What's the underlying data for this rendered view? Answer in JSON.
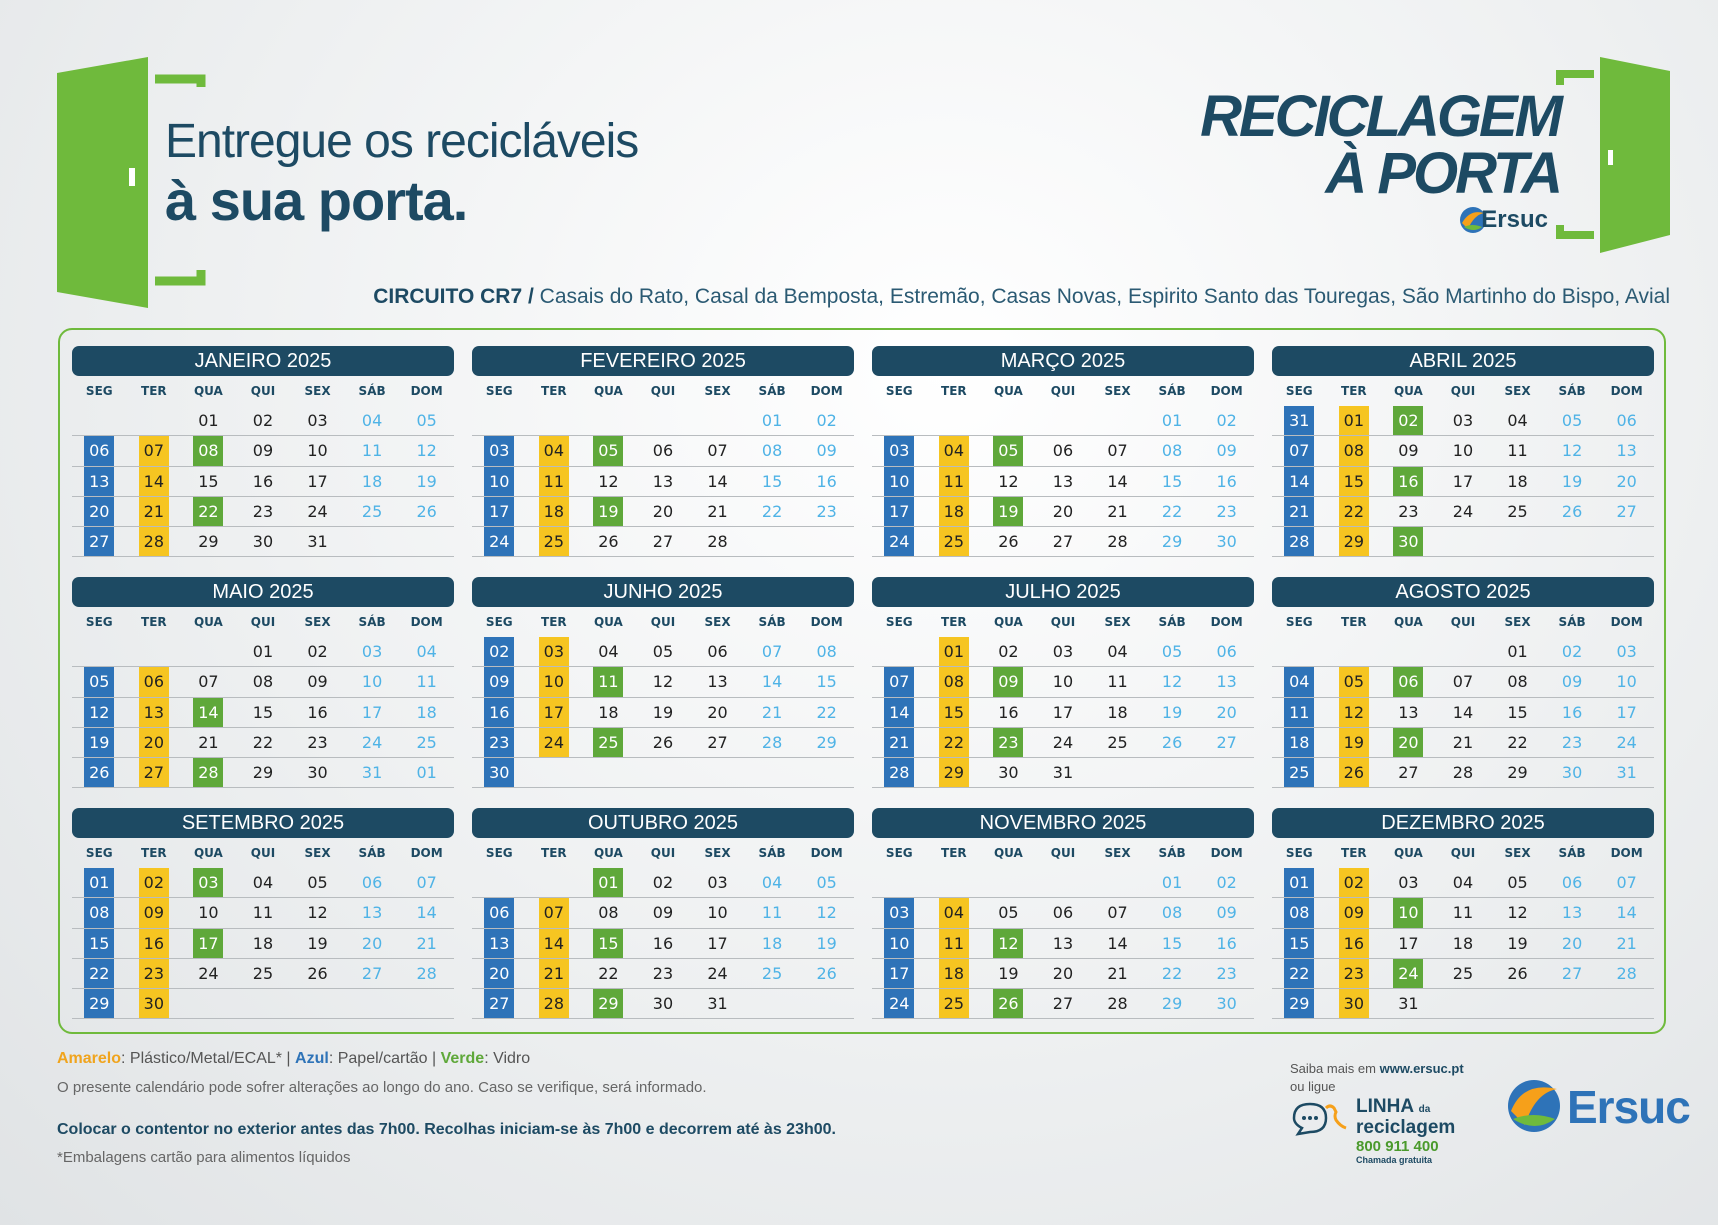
{
  "header": {
    "tagline_line1": "Entregue os recicláveis",
    "tagline_line2": "à sua porta.",
    "brand_line1": "RECICLAGEM",
    "brand_line2": "À PORTA",
    "brand_company": "Ersuc",
    "circuit_label": "CIRCUITO CR7 /",
    "circuit_places": "Casais do Rato, Casal da Bemposta, Estremão, Casas Novas, Espirito Santo das Touregas, São Martinho do Bispo, Avial"
  },
  "colors": {
    "amarelo": "#f6c521",
    "azul": "#2e73b8",
    "verde": "#5fa83a",
    "brand": "#1d4a63",
    "weekend": "#4fb3e6"
  },
  "weekdays": [
    "SEG",
    "TER",
    "QUA",
    "QUI",
    "SEX",
    "SÁB",
    "DOM"
  ],
  "months": [
    {
      "title": "JANEIRO 2025",
      "rows": [
        [
          "",
          "",
          "01",
          "02",
          "03",
          "04",
          "05"
        ],
        [
          "06",
          "07",
          "08",
          "09",
          "10",
          "11",
          "12"
        ],
        [
          "13",
          "14",
          "15",
          "16",
          "17",
          "18",
          "19"
        ],
        [
          "20",
          "21",
          "22",
          "23",
          "24",
          "25",
          "26"
        ],
        [
          "27",
          "28",
          "29",
          "30",
          "31",
          "",
          ""
        ]
      ],
      "azul": [
        "06",
        "13",
        "20",
        "27"
      ],
      "amarelo": [
        "07",
        "14",
        "21",
        "28"
      ],
      "verde": [
        "08",
        "22"
      ]
    },
    {
      "title": "FEVEREIRO 2025",
      "rows": [
        [
          "",
          "",
          "",
          "",
          "",
          "01",
          "02"
        ],
        [
          "03",
          "04",
          "05",
          "06",
          "07",
          "08",
          "09"
        ],
        [
          "10",
          "11",
          "12",
          "13",
          "14",
          "15",
          "16"
        ],
        [
          "17",
          "18",
          "19",
          "20",
          "21",
          "22",
          "23"
        ],
        [
          "24",
          "25",
          "26",
          "27",
          "28",
          "",
          ""
        ]
      ],
      "azul": [
        "03",
        "10",
        "17",
        "24"
      ],
      "amarelo": [
        "04",
        "11",
        "18",
        "25"
      ],
      "verde": [
        "05",
        "19"
      ]
    },
    {
      "title": "MARÇO 2025",
      "rows": [
        [
          "",
          "",
          "",
          "",
          "",
          "01",
          "02"
        ],
        [
          "03",
          "04",
          "05",
          "06",
          "07",
          "08",
          "09"
        ],
        [
          "10",
          "11",
          "12",
          "13",
          "14",
          "15",
          "16"
        ],
        [
          "17",
          "18",
          "19",
          "20",
          "21",
          "22",
          "23"
        ],
        [
          "24",
          "25",
          "26",
          "27",
          "28",
          "29",
          "30"
        ]
      ],
      "azul": [
        "03",
        "10",
        "17",
        "24"
      ],
      "amarelo": [
        "04",
        "11",
        "18",
        "25"
      ],
      "verde": [
        "05",
        "19"
      ]
    },
    {
      "title": "ABRIL 2025",
      "rows": [
        [
          "31",
          "01",
          "02",
          "03",
          "04",
          "05",
          "06"
        ],
        [
          "07",
          "08",
          "09",
          "10",
          "11",
          "12",
          "13"
        ],
        [
          "14",
          "15",
          "16",
          "17",
          "18",
          "19",
          "20"
        ],
        [
          "21",
          "22",
          "23",
          "24",
          "25",
          "26",
          "27"
        ],
        [
          "28",
          "29",
          "30",
          "",
          "",
          "",
          ""
        ]
      ],
      "azul": [
        "31",
        "07",
        "14",
        "21",
        "28"
      ],
      "amarelo": [
        "01",
        "08",
        "15",
        "22",
        "29"
      ],
      "verde": [
        "02",
        "16",
        "30"
      ]
    },
    {
      "title": "MAIO 2025",
      "rows": [
        [
          "",
          "",
          "",
          "01",
          "02",
          "03",
          "04"
        ],
        [
          "05",
          "06",
          "07",
          "08",
          "09",
          "10",
          "11"
        ],
        [
          "12",
          "13",
          "14",
          "15",
          "16",
          "17",
          "18"
        ],
        [
          "19",
          "20",
          "21",
          "22",
          "23",
          "24",
          "25"
        ],
        [
          "26",
          "27",
          "28",
          "29",
          "30",
          "31",
          "01"
        ]
      ],
      "azul": [
        "05",
        "12",
        "19",
        "26"
      ],
      "amarelo": [
        "06",
        "13",
        "20",
        "27"
      ],
      "verde": [
        "14",
        "28"
      ]
    },
    {
      "title": "JUNHO 2025",
      "rows": [
        [
          "02",
          "03",
          "04",
          "05",
          "06",
          "07",
          "08"
        ],
        [
          "09",
          "10",
          "11",
          "12",
          "13",
          "14",
          "15"
        ],
        [
          "16",
          "17",
          "18",
          "19",
          "20",
          "21",
          "22"
        ],
        [
          "23",
          "24",
          "25",
          "26",
          "27",
          "28",
          "29"
        ],
        [
          "30",
          "",
          "",
          "",
          "",
          "",
          ""
        ]
      ],
      "azul": [
        "02",
        "09",
        "16",
        "23",
        "30"
      ],
      "amarelo": [
        "03",
        "10",
        "17",
        "24"
      ],
      "verde": [
        "11",
        "25"
      ]
    },
    {
      "title": "JULHO 2025",
      "rows": [
        [
          "",
          "01",
          "02",
          "03",
          "04",
          "05",
          "06"
        ],
        [
          "07",
          "08",
          "09",
          "10",
          "11",
          "12",
          "13"
        ],
        [
          "14",
          "15",
          "16",
          "17",
          "18",
          "19",
          "20"
        ],
        [
          "21",
          "22",
          "23",
          "24",
          "25",
          "26",
          "27"
        ],
        [
          "28",
          "29",
          "30",
          "31",
          "",
          "",
          ""
        ]
      ],
      "azul": [
        "07",
        "14",
        "21",
        "28"
      ],
      "amarelo": [
        "01",
        "08",
        "15",
        "22",
        "29"
      ],
      "verde": [
        "09",
        "23"
      ]
    },
    {
      "title": "AGOSTO 2025",
      "rows": [
        [
          "",
          "",
          "",
          "",
          "01",
          "02",
          "03"
        ],
        [
          "04",
          "05",
          "06",
          "07",
          "08",
          "09",
          "10"
        ],
        [
          "11",
          "12",
          "13",
          "14",
          "15",
          "16",
          "17"
        ],
        [
          "18",
          "19",
          "20",
          "21",
          "22",
          "23",
          "24"
        ],
        [
          "25",
          "26",
          "27",
          "28",
          "29",
          "30",
          "31"
        ]
      ],
      "azul": [
        "04",
        "11",
        "18",
        "25"
      ],
      "amarelo": [
        "05",
        "12",
        "19",
        "26"
      ],
      "verde": [
        "06",
        "20"
      ]
    },
    {
      "title": "SETEMBRO 2025",
      "rows": [
        [
          "01",
          "02",
          "03",
          "04",
          "05",
          "06",
          "07"
        ],
        [
          "08",
          "09",
          "10",
          "11",
          "12",
          "13",
          "14"
        ],
        [
          "15",
          "16",
          "17",
          "18",
          "19",
          "20",
          "21"
        ],
        [
          "22",
          "23",
          "24",
          "25",
          "26",
          "27",
          "28"
        ],
        [
          "29",
          "30",
          "",
          "",
          "",
          "",
          ""
        ]
      ],
      "azul": [
        "01",
        "08",
        "15",
        "22",
        "29"
      ],
      "amarelo": [
        "02",
        "09",
        "16",
        "23",
        "30"
      ],
      "verde": [
        "03",
        "17"
      ]
    },
    {
      "title": "OUTUBRO 2025",
      "rows": [
        [
          "",
          "",
          "01",
          "02",
          "03",
          "04",
          "05"
        ],
        [
          "06",
          "07",
          "08",
          "09",
          "10",
          "11",
          "12"
        ],
        [
          "13",
          "14",
          "15",
          "16",
          "17",
          "18",
          "19"
        ],
        [
          "20",
          "21",
          "22",
          "23",
          "24",
          "25",
          "26"
        ],
        [
          "27",
          "28",
          "29",
          "30",
          "31",
          "",
          ""
        ]
      ],
      "azul": [
        "06",
        "13",
        "20",
        "27"
      ],
      "amarelo": [
        "07",
        "14",
        "21",
        "28"
      ],
      "verde": [
        "01",
        "15",
        "29"
      ]
    },
    {
      "title": "NOVEMBRO 2025",
      "rows": [
        [
          "",
          "",
          "",
          "",
          "",
          "01",
          "02"
        ],
        [
          "03",
          "04",
          "05",
          "06",
          "07",
          "08",
          "09"
        ],
        [
          "10",
          "11",
          "12",
          "13",
          "14",
          "15",
          "16"
        ],
        [
          "17",
          "18",
          "19",
          "20",
          "21",
          "22",
          "23"
        ],
        [
          "24",
          "25",
          "26",
          "27",
          "28",
          "29",
          "30"
        ]
      ],
      "azul": [
        "03",
        "10",
        "17",
        "24"
      ],
      "amarelo": [
        "04",
        "11",
        "18",
        "25"
      ],
      "verde": [
        "12",
        "26"
      ]
    },
    {
      "title": "DEZEMBRO 2025",
      "rows": [
        [
          "01",
          "02",
          "03",
          "04",
          "05",
          "06",
          "07"
        ],
        [
          "08",
          "09",
          "10",
          "11",
          "12",
          "13",
          "14"
        ],
        [
          "15",
          "16",
          "17",
          "18",
          "19",
          "20",
          "21"
        ],
        [
          "22",
          "23",
          "24",
          "25",
          "26",
          "27",
          "28"
        ],
        [
          "29",
          "30",
          "31",
          "",
          "",
          "",
          ""
        ]
      ],
      "azul": [
        "01",
        "08",
        "15",
        "22",
        "29"
      ],
      "amarelo": [
        "02",
        "09",
        "16",
        "23",
        "30"
      ],
      "verde": [
        "10",
        "24"
      ]
    }
  ],
  "legend": {
    "amarelo_label": "Amarelo",
    "amarelo_text": ": Plástico/Metal/ECAL* |",
    "azul_label": "Azul",
    "azul_text": ": Papel/cartão  |",
    "verde_label": "Verde",
    "verde_text": ": Vidro"
  },
  "footer": {
    "note": "O presente calendário pode sofrer alterações ao longo do ano. Caso se verifique, será informado.",
    "instruction": "Colocar o contentor no exterior antes das 7h00. Recolhas iniciam-se às 7h00 e decorrem até às 23h00.",
    "footnote": "*Embalagens cartão para alimentos líquidos",
    "saiba": "Saiba mais em",
    "site": "www.ersuc.pt",
    "ou_ligue": "ou ligue",
    "linha": "LINHA",
    "linha_da": "da",
    "reciclagem": "reciclagem",
    "phone": "800 911 400",
    "chamada": "Chamada gratuita",
    "ersuc_logo": "Ersuc"
  }
}
